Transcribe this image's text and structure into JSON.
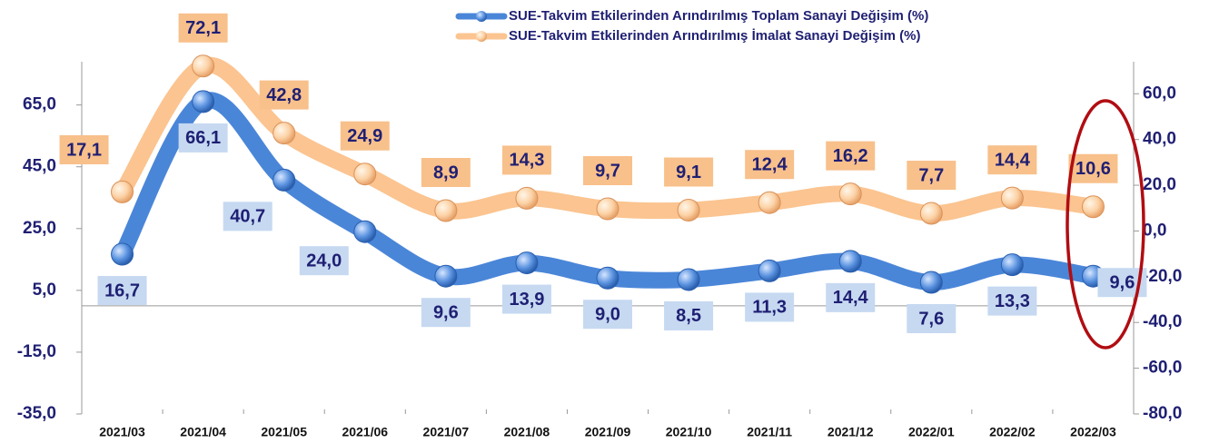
{
  "chart_data": {
    "type": "line",
    "categories": [
      "2021/03",
      "2021/04",
      "2021/05",
      "2021/06",
      "2021/07",
      "2021/08",
      "2021/09",
      "2021/10",
      "2021/11",
      "2021/12",
      "2022/01",
      "2022/02",
      "2022/03"
    ],
    "series": [
      {
        "name": "SUE-Takvim Etkilerinden Arındırılmış Toplam Sanayi Değişim (%)",
        "color": "#4a86d8",
        "values": [
          16.7,
          66.1,
          40.7,
          24.0,
          9.6,
          13.9,
          9.0,
          8.5,
          11.3,
          14.4,
          7.6,
          13.3,
          9.6
        ],
        "value_labels": [
          "16,7",
          "66,1",
          "40,7",
          "24,0",
          "9,6",
          "13,9",
          "9,0",
          "8,5",
          "11,3",
          "14,4",
          "7,6",
          "13,3",
          "9,6"
        ]
      },
      {
        "name": "SUE-Takvim Etkilerinden Arındırılmış İmalat Sanayi Değişim (%)",
        "color": "#fbc490",
        "axis": "y2",
        "values": [
          17.1,
          72.1,
          42.8,
          24.9,
          8.9,
          14.3,
          9.7,
          9.1,
          12.4,
          16.2,
          7.7,
          14.4,
          10.6
        ],
        "value_labels": [
          "17,1",
          "72,1",
          "42,8",
          "24,9",
          "8,9",
          "14,3",
          "9,7",
          "9,1",
          "12,4",
          "16,2",
          "7,7",
          "14,4",
          "10,6"
        ]
      }
    ],
    "ylim": [
      -35,
      79
    ],
    "yticks": [
      {
        "value": -35,
        "label": "-35,0"
      },
      {
        "value": -15,
        "label": "-15,0"
      },
      {
        "value": 5,
        "label": "5,0"
      },
      {
        "value": 25,
        "label": "25,0"
      },
      {
        "value": 45,
        "label": "45,0"
      },
      {
        "value": 65,
        "label": "65,0"
      }
    ],
    "y2lim": [
      -80,
      74
    ],
    "y2ticks": [
      {
        "value": -80,
        "label": "-80,0"
      },
      {
        "value": -60,
        "label": "-60,0"
      },
      {
        "value": -40,
        "label": "-40,0"
      },
      {
        "value": -20,
        "label": "-20,0"
      },
      {
        "value": 0,
        "label": "0,0"
      },
      {
        "value": 20,
        "label": "20,0"
      },
      {
        "value": 40,
        "label": "40,0"
      },
      {
        "value": 60,
        "label": "60,0"
      }
    ],
    "grid": false
  }
}
